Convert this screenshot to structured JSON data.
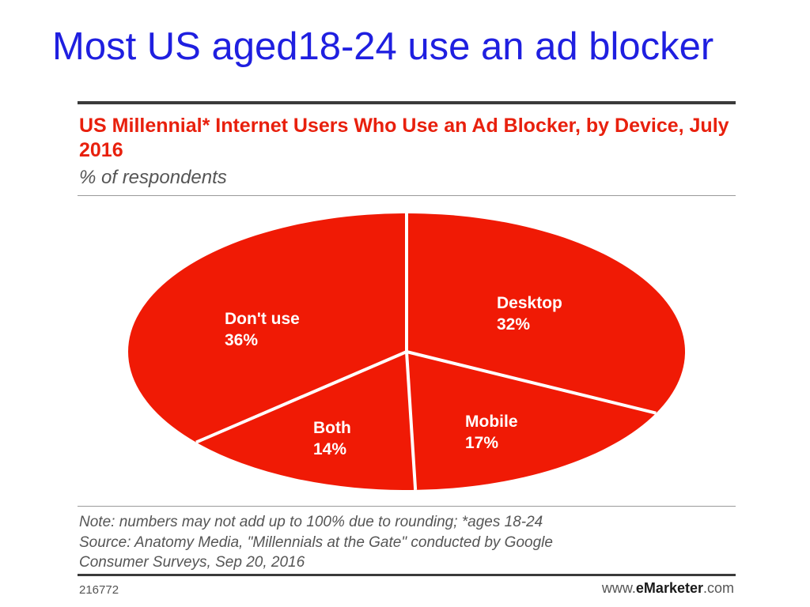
{
  "slide": {
    "title": "Most US aged18-24 use an ad blocker"
  },
  "chart_data": {
    "type": "pie",
    "title": "US Millennial* Internet Users Who Use an Ad Blocker, by Device, July 2016",
    "subtitle": "% of respondents",
    "slices": [
      {
        "label": "Desktop",
        "value": 32,
        "display": "32%"
      },
      {
        "label": "Mobile",
        "value": 17,
        "display": "17%"
      },
      {
        "label": "Both",
        "value": 14,
        "display": "14%"
      },
      {
        "label": "Don't use",
        "value": 36,
        "display": "36%"
      }
    ],
    "slice_color": "#f01a05",
    "separator_color": "#ffffff",
    "label_color": "#ffffff"
  },
  "footer": {
    "note": "Note: numbers may not add up to 100% due to rounding; *ages 18-24",
    "source_line1": "Source: Anatomy Media, \"Millennials at the Gate\" conducted by Google",
    "source_line2": "Consumer Surveys, Sep 20, 2016",
    "chart_id": "216772",
    "brand_prefix": "www.",
    "brand_name": "eMarketer",
    "brand_suffix": ".com"
  }
}
